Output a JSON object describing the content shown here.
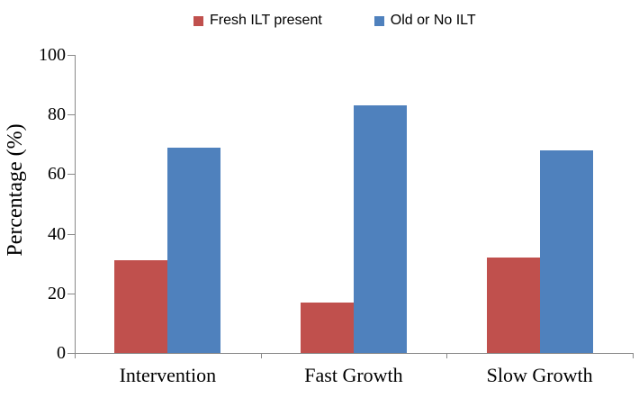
{
  "chart_data": {
    "type": "bar",
    "categories": [
      "Intervention",
      "Fast Growth",
      "Slow Growth"
    ],
    "series": [
      {
        "name": "Fresh ILT present",
        "color": "#C0504D",
        "values": [
          31,
          17,
          32
        ]
      },
      {
        "name": "Old or No ILT",
        "color": "#4F81BD",
        "values": [
          69,
          83,
          68
        ]
      }
    ],
    "xlabel": "",
    "ylabel": "Percentage (%)",
    "ylim": [
      0,
      100
    ],
    "yticks": [
      0,
      20,
      40,
      60,
      80,
      100
    ],
    "grid": false,
    "legend_position": "top-center",
    "axis_color": "#898989",
    "text_color": "#000000"
  }
}
